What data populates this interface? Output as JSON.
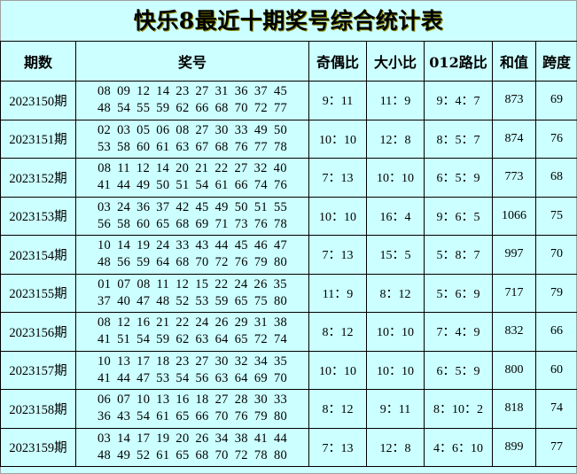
{
  "title": "快乐8最近十期奖号综合统计表",
  "headers": [
    "期数",
    "奖号",
    "奇偶比",
    "大小比",
    "012路比",
    "和值",
    "跨度"
  ],
  "rows": [
    {
      "period": "2023150期",
      "line1": [
        "08",
        "09",
        "12",
        "14",
        "23",
        "27",
        "31",
        "36",
        "37",
        "45"
      ],
      "line2": [
        "48",
        "54",
        "55",
        "59",
        "62",
        "66",
        "68",
        "70",
        "72",
        "77"
      ],
      "odd_even": "9：11",
      "big_small": "11：9",
      "road012": "9：4：7",
      "sum": "873",
      "span": "69"
    },
    {
      "period": "2023151期",
      "line1": [
        "02",
        "03",
        "05",
        "06",
        "08",
        "27",
        "30",
        "33",
        "49",
        "50"
      ],
      "line2": [
        "53",
        "58",
        "60",
        "61",
        "63",
        "67",
        "68",
        "76",
        "77",
        "78"
      ],
      "odd_even": "10：10",
      "big_small": "12：8",
      "road012": "8：5：7",
      "sum": "874",
      "span": "76"
    },
    {
      "period": "2023152期",
      "line1": [
        "08",
        "11",
        "12",
        "14",
        "20",
        "21",
        "22",
        "27",
        "32",
        "40"
      ],
      "line2": [
        "41",
        "44",
        "49",
        "50",
        "51",
        "54",
        "61",
        "66",
        "74",
        "76"
      ],
      "odd_even": "7：13",
      "big_small": "10：10",
      "road012": "6：5：9",
      "sum": "773",
      "span": "68"
    },
    {
      "period": "2023153期",
      "line1": [
        "03",
        "24",
        "36",
        "37",
        "42",
        "45",
        "49",
        "50",
        "51",
        "55"
      ],
      "line2": [
        "56",
        "58",
        "60",
        "65",
        "68",
        "69",
        "71",
        "73",
        "76",
        "78"
      ],
      "odd_even": "10：10",
      "big_small": "16：4",
      "road012": "9：6：5",
      "sum": "1066",
      "span": "75"
    },
    {
      "period": "2023154期",
      "line1": [
        "10",
        "14",
        "19",
        "24",
        "33",
        "43",
        "44",
        "45",
        "46",
        "47"
      ],
      "line2": [
        "48",
        "56",
        "59",
        "64",
        "68",
        "70",
        "72",
        "76",
        "79",
        "80"
      ],
      "odd_even": "7：13",
      "big_small": "15：5",
      "road012": "5：8：7",
      "sum": "997",
      "span": "70"
    },
    {
      "period": "2023155期",
      "line1": [
        "01",
        "07",
        "08",
        "11",
        "12",
        "15",
        "22",
        "24",
        "26",
        "35"
      ],
      "line2": [
        "37",
        "40",
        "47",
        "48",
        "52",
        "53",
        "59",
        "65",
        "75",
        "80"
      ],
      "odd_even": "11：9",
      "big_small": "8：12",
      "road012": "5：6：9",
      "sum": "717",
      "span": "79"
    },
    {
      "period": "2023156期",
      "line1": [
        "08",
        "12",
        "16",
        "21",
        "22",
        "24",
        "26",
        "29",
        "31",
        "38"
      ],
      "line2": [
        "41",
        "51",
        "54",
        "59",
        "62",
        "63",
        "64",
        "65",
        "72",
        "74"
      ],
      "odd_even": "8：12",
      "big_small": "10：10",
      "road012": "7：4：9",
      "sum": "832",
      "span": "66"
    },
    {
      "period": "2023157期",
      "line1": [
        "10",
        "13",
        "17",
        "18",
        "23",
        "27",
        "30",
        "32",
        "34",
        "35"
      ],
      "line2": [
        "41",
        "44",
        "47",
        "53",
        "54",
        "56",
        "63",
        "64",
        "69",
        "70"
      ],
      "odd_even": "10：10",
      "big_small": "10：10",
      "road012": "6：5：9",
      "sum": "800",
      "span": "60"
    },
    {
      "period": "2023158期",
      "line1": [
        "06",
        "07",
        "10",
        "13",
        "16",
        "18",
        "27",
        "28",
        "30",
        "33"
      ],
      "line2": [
        "36",
        "43",
        "54",
        "61",
        "65",
        "66",
        "70",
        "76",
        "79",
        "80"
      ],
      "odd_even": "8：12",
      "big_small": "9：11",
      "road012": "8：10：2",
      "sum": "818",
      "span": "74"
    },
    {
      "period": "2023159期",
      "line1": [
        "03",
        "14",
        "17",
        "19",
        "20",
        "26",
        "34",
        "38",
        "41",
        "44"
      ],
      "line2": [
        "48",
        "49",
        "52",
        "61",
        "65",
        "68",
        "70",
        "72",
        "78",
        "80"
      ],
      "odd_even": "7：13",
      "big_small": "12：8",
      "road012": "4：6：10",
      "sum": "899",
      "span": "77"
    }
  ],
  "colors": {
    "background": "#ccffff",
    "border": "#000000"
  }
}
